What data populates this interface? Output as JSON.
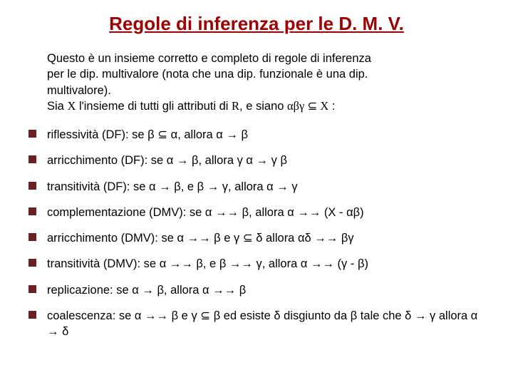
{
  "title": "Regole di inferenza per le D. M. V.",
  "intro": "Questo è un insieme corretto e completo di regole di inferenza per le dip. multivalore (nota che una dip. funzionale è una dip. multivalore).\nSia X l'insieme di tutti gli attributi di R, e siano αβγ ⊆ X :",
  "bullet_color": "#6b1f1f",
  "title_color": "#a00000",
  "text_color": "#000000",
  "background_color": "#ffffff",
  "font_family": "Arial, Helvetica, sans-serif",
  "title_fontsize": 26,
  "body_fontsize": 16.5,
  "rules": [
    "riflessività (DF): se β ⊆ α, allora α → β",
    "arricchimento (DF): se α → β, allora γ α →  γ β",
    "transitività (DF): se α → β, e β → γ, allora α → γ",
    "complementazione (DMV): se α →→ β, allora α →→ (X - αβ)",
    "arricchimento (DMV): se α →→ β e γ ⊆ δ allora  αδ →→  βγ",
    "transitività (DMV): se α →→ β, e β →→ γ, allora α →→  (γ - β)",
    "replicazione: se α → β, allora α →→ β",
    "coalescenza: se α →→ β e γ ⊆ β ed esiste δ disgiunto da β tale che δ → γ allora α → δ"
  ]
}
